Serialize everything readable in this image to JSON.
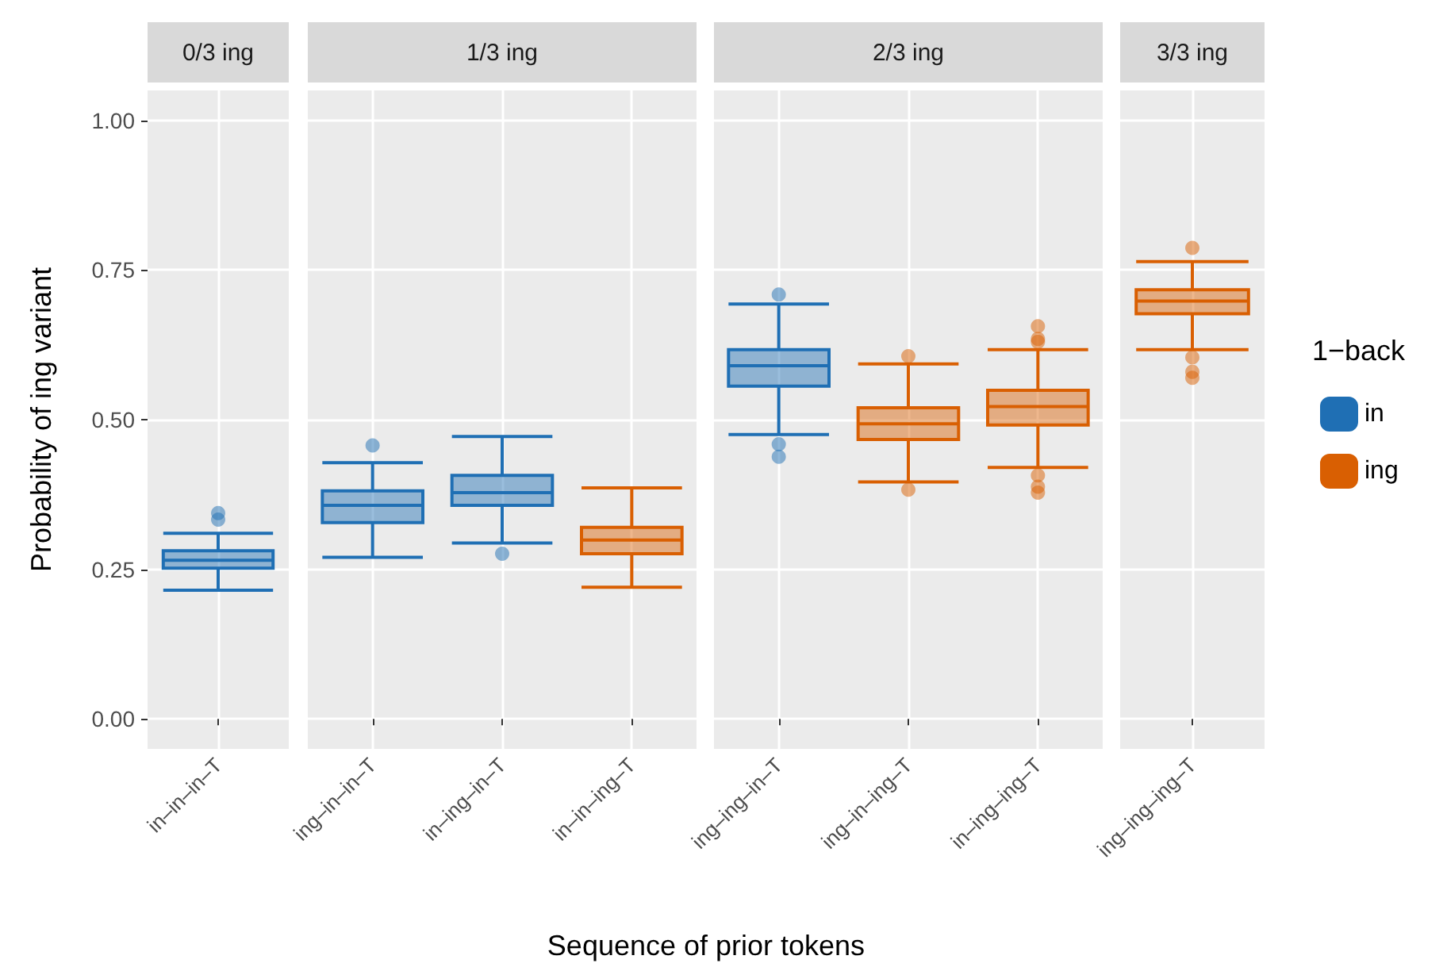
{
  "chart_data": [
    {
      "type": "box",
      "title": "0/3 ing",
      "ylabel": "Probability of ing variant",
      "categories": [
        "in–in–in–T"
      ],
      "series": [
        {
          "color": "#1f6fb4",
          "boxes": [
            {
              "low": 0.215,
              "q1": 0.252,
              "median": 0.265,
              "q3": 0.281,
              "high": 0.31,
              "outliers": [
                0.333,
                0.344
              ]
            }
          ]
        }
      ],
      "ylim": [
        -0.05,
        1.05
      ],
      "yticks": [
        {
          "value": 0,
          "label": "0.00"
        },
        {
          "value": 0.25,
          "label": "0.25"
        },
        {
          "value": 0.5,
          "label": "0.50"
        },
        {
          "value": 0.75,
          "label": "0.75"
        },
        {
          "value": 1,
          "label": "1.00"
        }
      ],
      "grid": true
    },
    {
      "type": "box",
      "title": "1/3 ing",
      "xlabel": "Sequence of prior tokens",
      "categories": [
        "ing–in–in–T",
        "in–ing–in–T",
        "in–in–ing–T"
      ],
      "series": [
        {
          "color": "#1f6fb4",
          "boxes": [
            {
              "low": 0.27,
              "q1": 0.328,
              "median": 0.357,
              "q3": 0.381,
              "high": 0.428,
              "outliers": [
                0.457
              ]
            },
            {
              "low": 0.294,
              "q1": 0.357,
              "median": 0.378,
              "q3": 0.407,
              "high": 0.472,
              "outliers": [
                0.276
              ]
            },
            null
          ]
        },
        {
          "color": "#d95f02",
          "boxes": [
            null,
            null,
            {
              "low": 0.22,
              "q1": 0.276,
              "median": 0.299,
              "q3": 0.32,
              "high": 0.386
            }
          ]
        }
      ],
      "ylim": [
        -0.05,
        1.05
      ],
      "yticks": [
        0,
        0.25,
        0.5,
        0.75,
        1
      ],
      "grid": true,
      "tick_labels": "x"
    },
    {
      "type": "box",
      "title": "2/3 ing",
      "categories": [
        "ing–ing–in–T",
        "ing–in–ing–T",
        "in–ing–ing–T"
      ],
      "series": [
        {
          "color": "#1f6fb4",
          "boxes": [
            {
              "low": 0.475,
              "q1": 0.556,
              "median": 0.59,
              "q3": 0.617,
              "high": 0.693,
              "outliers": [
                0.709,
                0.459,
                0.438
              ]
            },
            null,
            null
          ]
        },
        {
          "color": "#d95f02",
          "boxes": [
            null,
            {
              "low": 0.396,
              "q1": 0.467,
              "median": 0.493,
              "q3": 0.52,
              "high": 0.593,
              "outliers": [
                0.606,
                0.383
              ]
            },
            {
              "low": 0.42,
              "q1": 0.491,
              "median": 0.522,
              "q3": 0.549,
              "high": 0.617,
              "outliers": [
                0.656,
                0.635,
                0.63,
                0.407,
                0.388,
                0.378
              ]
            }
          ]
        }
      ],
      "ylim": [
        -0.05,
        1.05
      ],
      "yticks": [
        0,
        0.25,
        0.5,
        0.75,
        1
      ],
      "grid": true,
      "tick_labels": "x"
    },
    {
      "type": "box",
      "title": "3/3 ing",
      "categories": [
        "ing–ing–ing–T"
      ],
      "legend": "right",
      "legend_title": "1−back",
      "series": [
        {
          "name": "in",
          "color": "#1f6fb4",
          "boxes": [
            null
          ]
        },
        {
          "name": "ing",
          "color": "#d95f02",
          "boxes": [
            {
              "low": 0.617,
              "q1": 0.677,
              "median": 0.698,
              "q3": 0.717,
              "high": 0.764,
              "outliers": [
                0.787,
                0.604,
                0.58,
                0.57
              ]
            }
          ]
        }
      ],
      "ylim": [
        -0.05,
        1.05
      ],
      "yticks": [
        0,
        0.25,
        0.5,
        0.75,
        1
      ],
      "grid": true,
      "tick_labels": "x"
    }
  ]
}
